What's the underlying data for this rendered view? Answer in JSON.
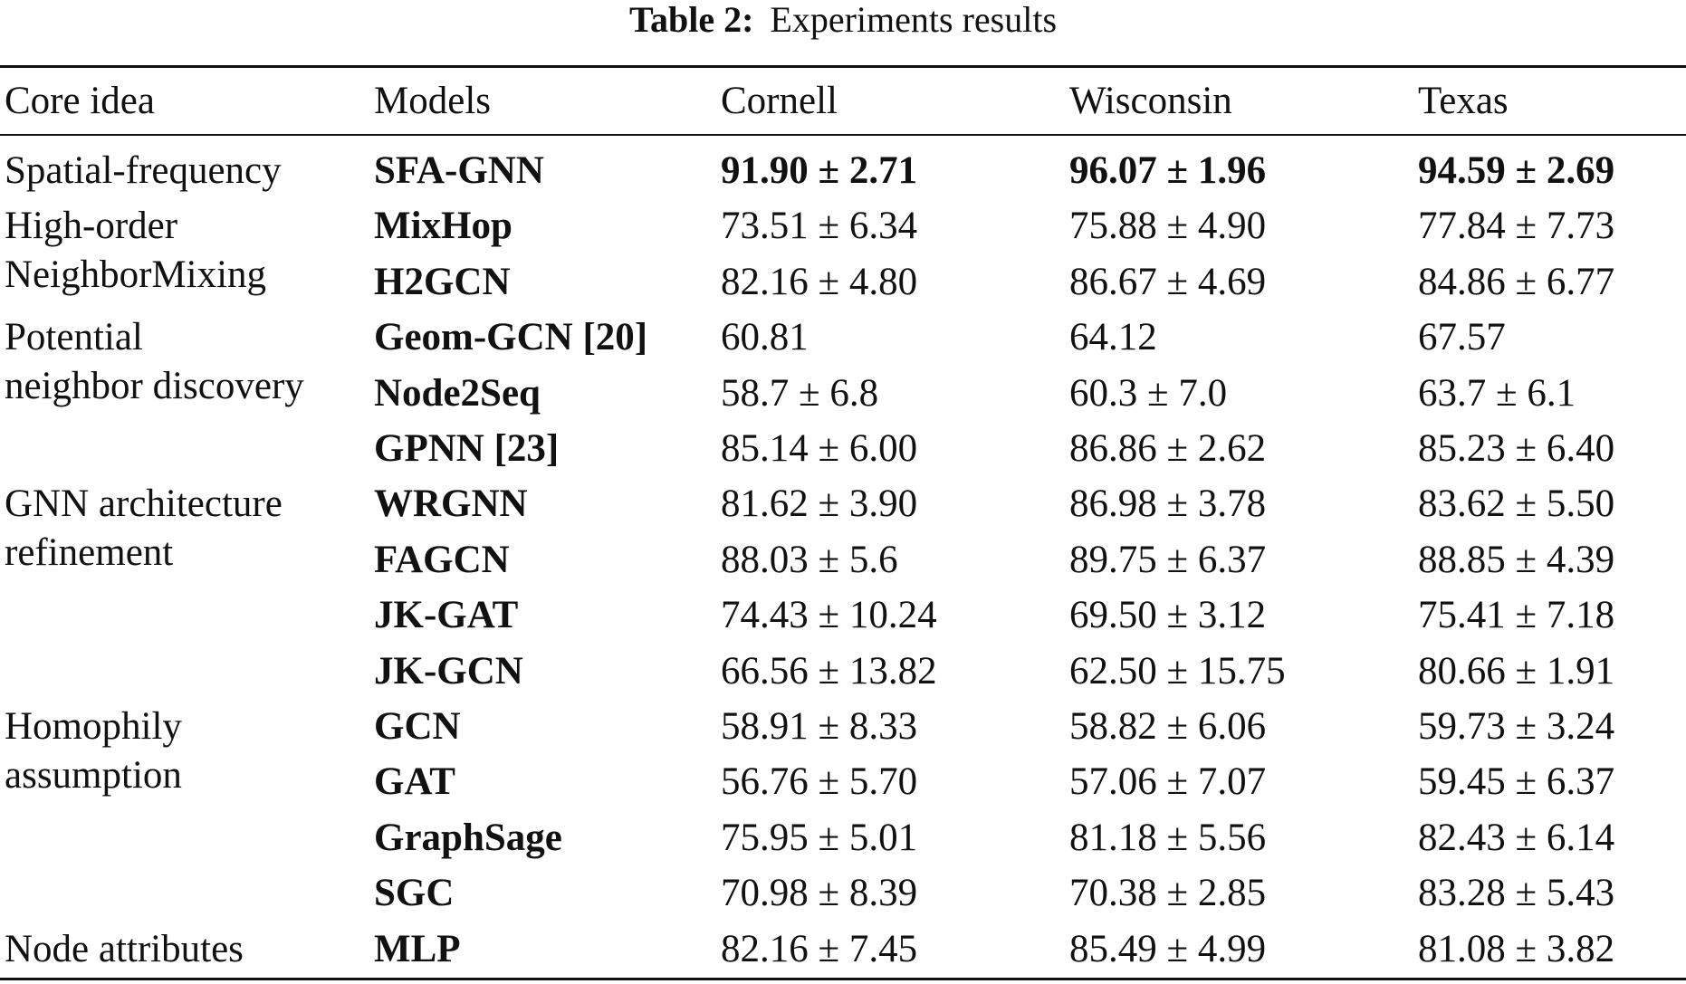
{
  "caption": {
    "label": "Table 2:",
    "text": "Experiments results"
  },
  "headers": {
    "core_idea": "Core idea",
    "models": "Models",
    "cornell": "Cornell",
    "wisconsin": "Wisconsin",
    "texas": "Texas"
  },
  "groups": [
    {
      "label": "Spatial-frequency",
      "row_start": 0
    },
    {
      "label": "High-order\nNeighborMixing",
      "row_start": 1
    },
    {
      "label": "Potential\nneighbor discovery",
      "row_start": 3
    },
    {
      "label": "GNN architecture\nrefinement",
      "row_start": 6
    },
    {
      "label": "Homophily\nassumption",
      "row_start": 10
    },
    {
      "label": "Node attributes",
      "row_start": 14
    }
  ],
  "rows": [
    {
      "model": "SFA-GNN",
      "cornell": "91.90 ± 2.71",
      "wisconsin": "96.07 ± 1.96",
      "texas": "94.59 ± 2.69",
      "best": true
    },
    {
      "model": "MixHop",
      "cornell": "73.51 ± 6.34",
      "wisconsin": "75.88 ± 4.90",
      "texas": "77.84 ± 7.73"
    },
    {
      "model": "H2GCN",
      "cornell": "82.16 ± 4.80",
      "wisconsin": "86.67 ± 4.69",
      "texas": "84.86 ± 6.77"
    },
    {
      "model": "Geom-GCN [20]",
      "cornell": "60.81",
      "wisconsin": "64.12",
      "texas": "67.57"
    },
    {
      "model": "Node2Seq",
      "cornell": "58.7 ± 6.8",
      "wisconsin": "60.3 ± 7.0",
      "texas": "63.7 ± 6.1"
    },
    {
      "model": "GPNN [23]",
      "cornell": "85.14 ± 6.00",
      "wisconsin": "86.86 ± 2.62",
      "texas": "85.23 ± 6.40"
    },
    {
      "model": "WRGNN",
      "cornell": "81.62 ± 3.90",
      "wisconsin": "86.98 ± 3.78",
      "texas": "83.62 ± 5.50"
    },
    {
      "model": "FAGCN",
      "cornell": "88.03 ± 5.6",
      "wisconsin": "89.75 ± 6.37",
      "texas": "88.85 ± 4.39"
    },
    {
      "model": "JK-GAT",
      "cornell": "74.43 ± 10.24",
      "wisconsin": "69.50 ± 3.12",
      "texas": "75.41 ± 7.18"
    },
    {
      "model": "JK-GCN",
      "cornell": "66.56 ± 13.82",
      "wisconsin": "62.50 ± 15.75",
      "texas": "80.66 ± 1.91"
    },
    {
      "model": "GCN",
      "cornell": "58.91 ± 8.33",
      "wisconsin": "58.82 ± 6.06",
      "texas": "59.73 ± 3.24"
    },
    {
      "model": "GAT",
      "cornell": "56.76 ± 5.70",
      "wisconsin": "57.06 ± 7.07",
      "texas": "59.45 ± 6.37"
    },
    {
      "model": "GraphSage",
      "cornell": "75.95 ± 5.01",
      "wisconsin": "81.18 ± 5.56",
      "texas": "82.43 ± 6.14"
    },
    {
      "model": "SGC",
      "cornell": "70.98 ± 8.39",
      "wisconsin": "70.38 ± 2.85",
      "texas": "83.28 ± 5.43"
    },
    {
      "model": "MLP",
      "cornell": "82.16 ± 7.45",
      "wisconsin": "85.49 ± 4.99",
      "texas": "81.08 ± 3.82"
    }
  ]
}
